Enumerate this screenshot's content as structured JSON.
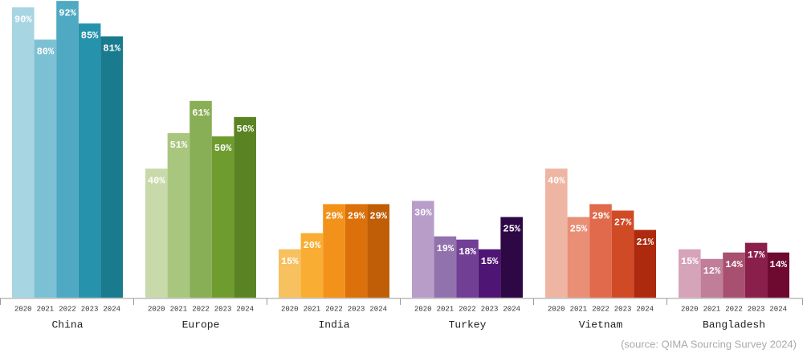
{
  "chart_data": {
    "type": "bar",
    "categories": [
      "2020",
      "2021",
      "2022",
      "2023",
      "2024"
    ],
    "series": [
      {
        "name": "China",
        "colors": [
          "#a8d5e2",
          "#7cc0d3",
          "#4fa9c2",
          "#2692ab",
          "#1a7a8e"
        ],
        "values": [
          90,
          80,
          92,
          85,
          81
        ],
        "value_labels": [
          "90%",
          "80%",
          "92%",
          "85%",
          "81%"
        ]
      },
      {
        "name": "Europe",
        "colors": [
          "#c8d9aa",
          "#a9c67f",
          "#88ae56",
          "#6e9c2f",
          "#5a8423"
        ],
        "values": [
          40,
          51,
          61,
          50,
          56
        ],
        "value_labels": [
          "40%",
          "51%",
          "61%",
          "50%",
          "56%"
        ]
      },
      {
        "name": "India",
        "colors": [
          "#f7c15f",
          "#f9ad32",
          "#f3921b",
          "#dc700a",
          "#bf5e07"
        ],
        "values": [
          15,
          20,
          29,
          29,
          29
        ],
        "value_labels": [
          "15%",
          "20%",
          "29%",
          "29%",
          "29%"
        ]
      },
      {
        "name": "Turkey",
        "colors": [
          "#b89dc8",
          "#9272ac",
          "#713f94",
          "#4f1574",
          "#2d0845"
        ],
        "values": [
          30,
          19,
          18,
          15,
          25
        ],
        "value_labels": [
          "30%",
          "19%",
          "18%",
          "15%",
          "25%"
        ]
      },
      {
        "name": "Vietnam",
        "colors": [
          "#eeb5a2",
          "#e88f76",
          "#e06a4b",
          "#d04a25",
          "#ad2a0e"
        ],
        "values": [
          40,
          25,
          29,
          27,
          21
        ],
        "value_labels": [
          "40%",
          "25%",
          "29%",
          "27%",
          "21%"
        ]
      },
      {
        "name": "Bangladesh",
        "colors": [
          "#d6a4b9",
          "#c17e98",
          "#a8506f",
          "#8b1f4c",
          "#6e0930"
        ],
        "values": [
          15,
          12,
          14,
          17,
          14
        ],
        "value_labels": [
          "15%",
          "12%",
          "14%",
          "17%",
          "14%"
        ]
      }
    ],
    "source": "(source: QIMA Sourcing Survey 2024)"
  }
}
